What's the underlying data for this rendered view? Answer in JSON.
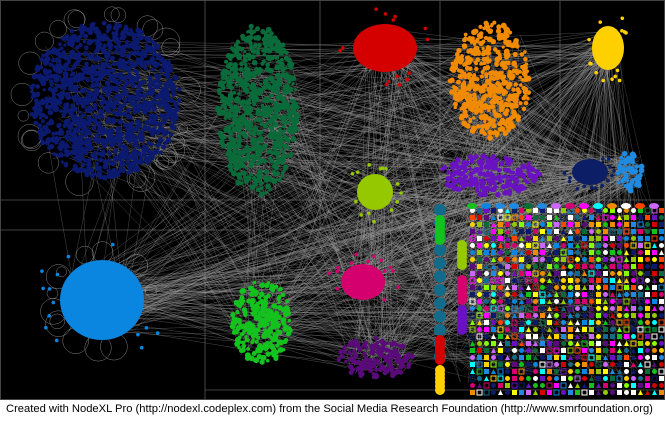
{
  "caption": "Created with NodeXL Pro (http://nodexl.codeplex.com) from the Social Media Research Foundation (http://www.smrfoundation.org)",
  "graph": {
    "background": "#000000",
    "edge_color": "#9a9a9a",
    "grid_color": "#555555",
    "groups": [
      {
        "id": "navy",
        "color": "#0b1a6e"
      },
      {
        "id": "dark-green",
        "color": "#0a6b3a"
      },
      {
        "id": "red",
        "color": "#d40000"
      },
      {
        "id": "orange",
        "color": "#f08a00"
      },
      {
        "id": "yellow",
        "color": "#ffd000"
      },
      {
        "id": "lime",
        "color": "#96c800"
      },
      {
        "id": "violet",
        "color": "#6a12c2"
      },
      {
        "id": "dark-navy",
        "color": "#0c1e66"
      },
      {
        "id": "sky-blue",
        "color": "#1f8ae0"
      },
      {
        "id": "blue",
        "color": "#0a86e0"
      },
      {
        "id": "green",
        "color": "#14c21e"
      },
      {
        "id": "magenta",
        "color": "#d4006e"
      },
      {
        "id": "purple",
        "color": "#5a0a7a"
      },
      {
        "id": "teal",
        "color": "#136b8a"
      },
      {
        "id": "mixed",
        "color": "#ffffff"
      }
    ]
  }
}
